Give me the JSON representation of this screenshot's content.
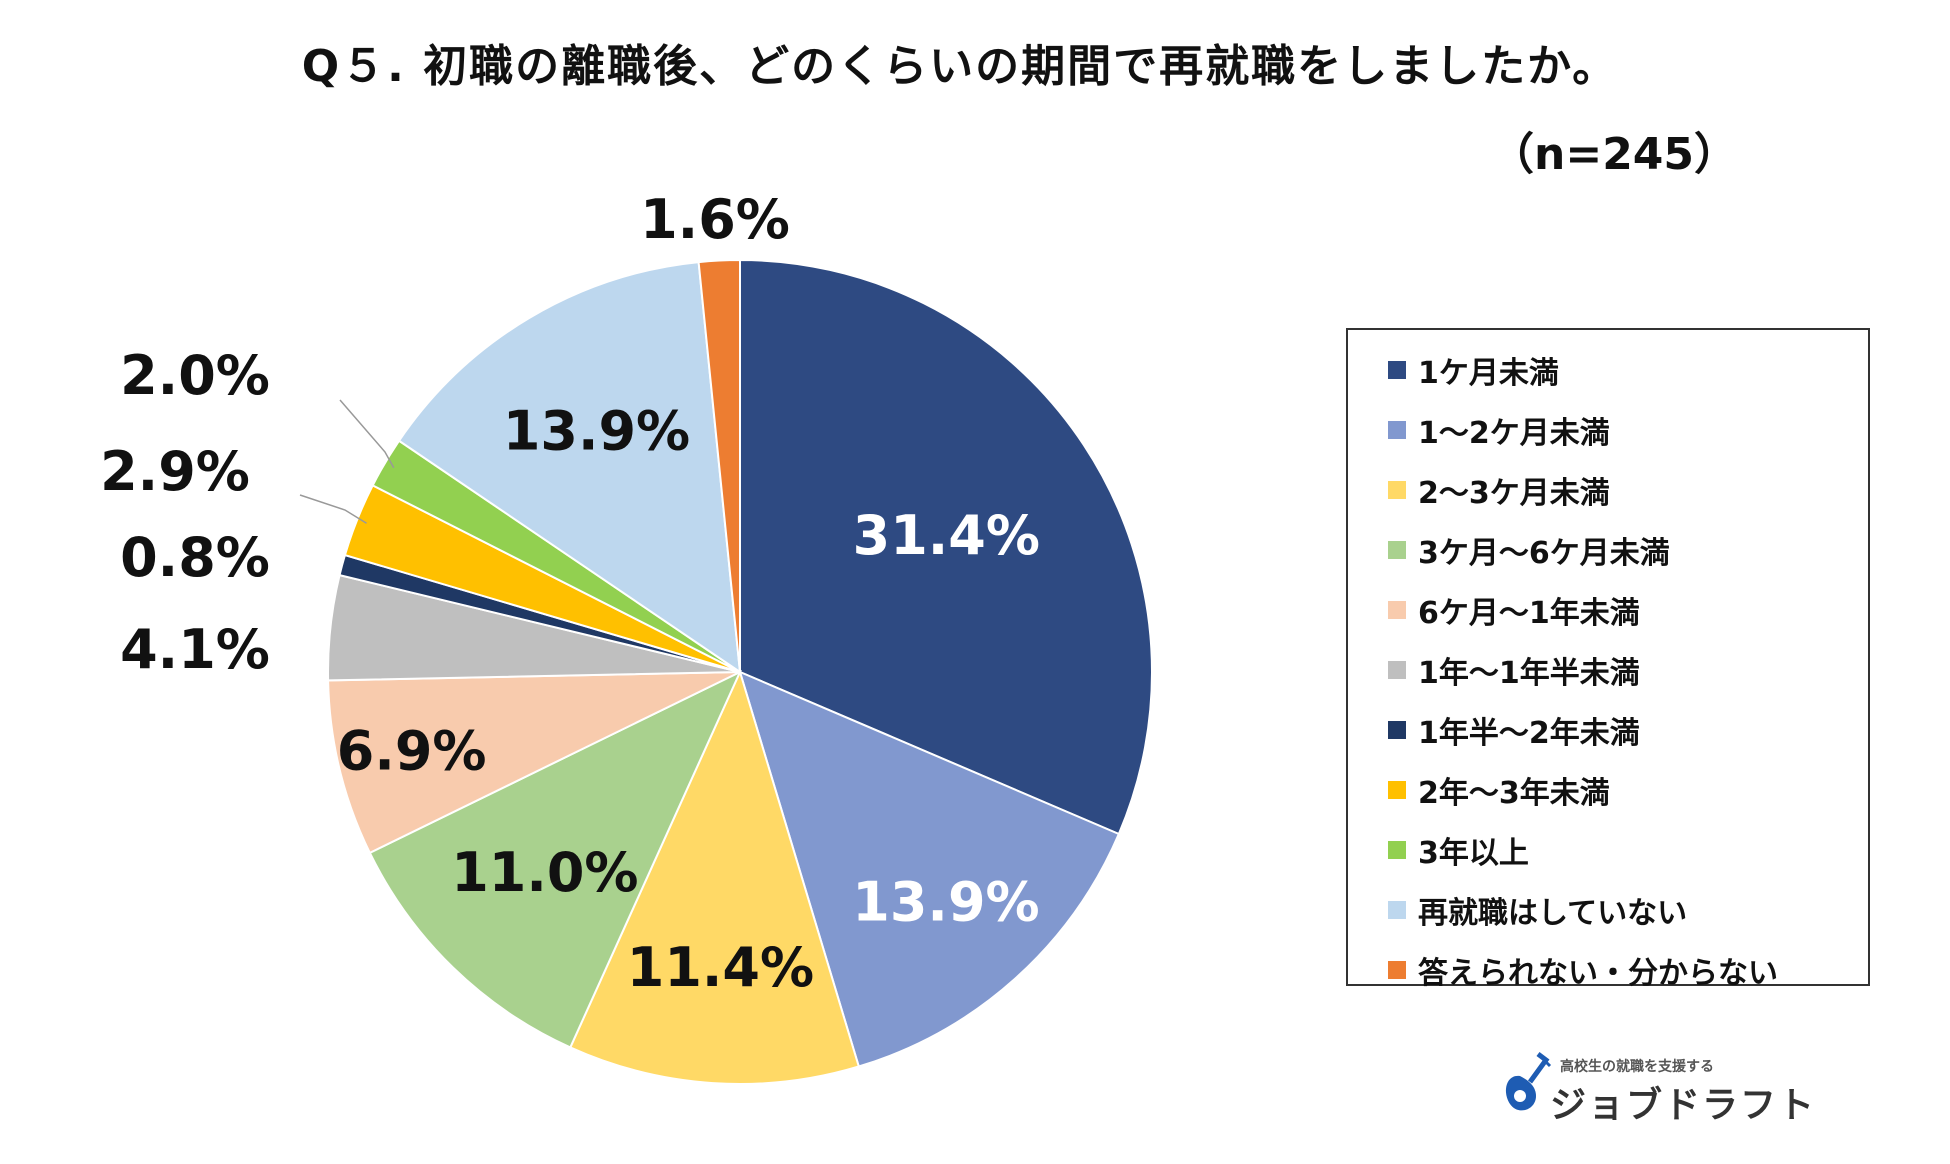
{
  "chart_data": {
    "type": "pie",
    "title": "Q５. 初職の離職後、どのくらいの期間で再就職をしましたか。",
    "subtitle": "（n=245）",
    "legend_position": "right",
    "slices": [
      {
        "name": "1ケ月未満",
        "value": 31.4,
        "label": "31.4%",
        "color": "#2E4A82",
        "label_color": "#ffffff"
      },
      {
        "name": "1～2ケ月未満",
        "value": 13.9,
        "label": "13.9%",
        "color": "#8198CF",
        "label_color": "#ffffff"
      },
      {
        "name": "2～3ケ月未満",
        "value": 11.4,
        "label": "11.4%",
        "color": "#FFD966",
        "label_color": "#111111"
      },
      {
        "name": "3ケ月～6ケ月未満",
        "value": 11.0,
        "label": "11.0%",
        "color": "#A9D18E",
        "label_color": "#111111"
      },
      {
        "name": "6ケ月～1年未満",
        "value": 6.9,
        "label": "6.9%",
        "color": "#F8CBAD",
        "label_color": "#111111"
      },
      {
        "name": "1年～1年半未満",
        "value": 4.1,
        "label": "4.1%",
        "color": "#BFBFBF",
        "label_color": "#111111"
      },
      {
        "name": "1年半～2年未満",
        "value": 0.8,
        "label": "0.8%",
        "color": "#1F3864",
        "label_color": "#111111"
      },
      {
        "name": "2年～3年未満",
        "value": 2.9,
        "label": "2.9%",
        "color": "#FFC000",
        "label_color": "#111111"
      },
      {
        "name": "3年以上",
        "value": 2.0,
        "label": "2.0%",
        "color": "#92D050",
        "label_color": "#111111"
      },
      {
        "name": "再就職はしていない",
        "value": 13.9,
        "label": "13.9%",
        "color": "#BDD7EE",
        "label_color": "#111111"
      },
      {
        "name": "答えられない・分からない",
        "value": 1.6,
        "label": "1.6%",
        "color": "#ED7D31",
        "label_color": "#111111"
      }
    ]
  },
  "logo": {
    "tagline": "高校生の就職を支援する",
    "name": "ジョブドラフト",
    "color": "#1E5CB3"
  }
}
